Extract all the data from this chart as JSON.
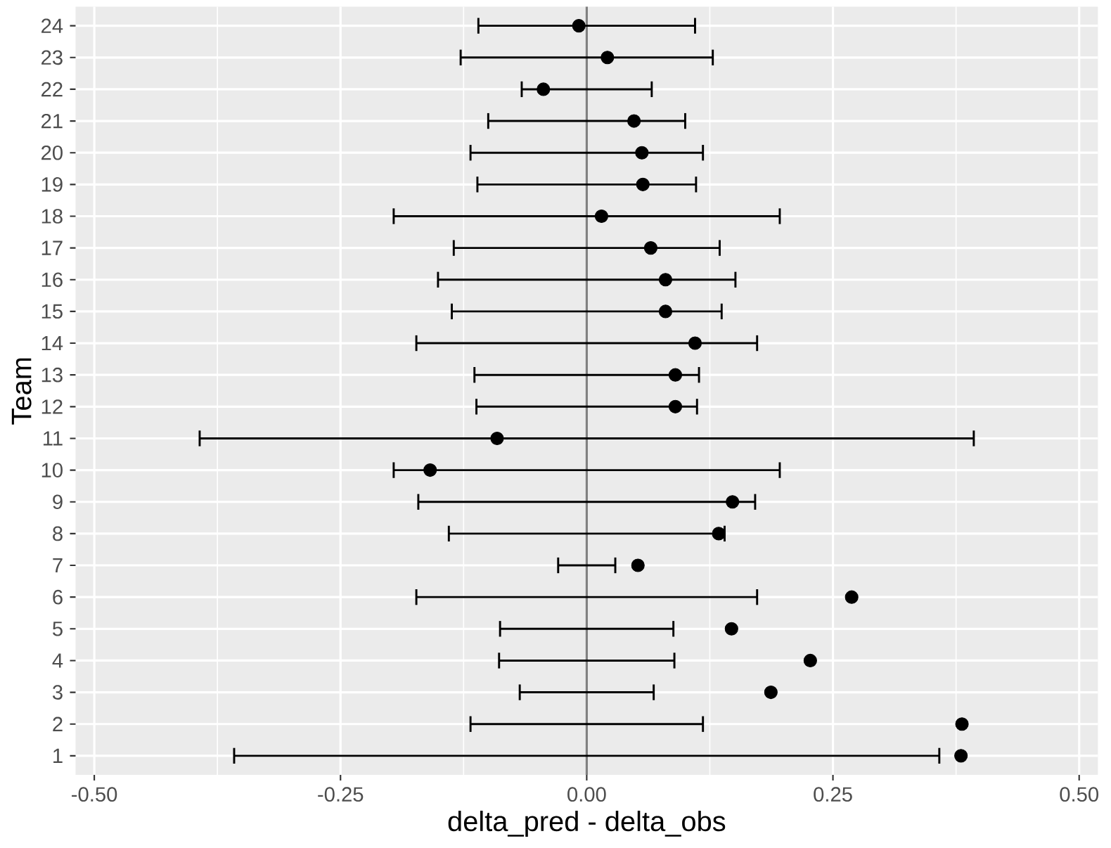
{
  "chart_data": {
    "type": "scatter",
    "orientation": "horizontal",
    "xlabel": "delta_pred - delta_obs",
    "ylabel": "Team",
    "categories": [
      "24",
      "23",
      "22",
      "21",
      "20",
      "19",
      "18",
      "17",
      "16",
      "15",
      "14",
      "13",
      "12",
      "11",
      "10",
      "9",
      "8",
      "7",
      "6",
      "5",
      "4",
      "3",
      "2",
      "1"
    ],
    "series": [
      {
        "color": "#000000",
        "values": [
          -0.008,
          0.021,
          -0.044,
          0.048,
          0.056,
          0.057,
          0.015,
          0.065,
          0.08,
          0.08,
          0.11,
          0.09,
          0.09,
          -0.091,
          -0.159,
          0.148,
          0.134,
          0.052,
          0.269,
          0.147,
          0.227,
          0.187,
          0.381,
          0.38
        ],
        "errors": [
          [
            -0.11,
            0.11
          ],
          [
            -0.128,
            0.128
          ],
          [
            -0.066,
            0.066
          ],
          [
            -0.1,
            0.1
          ],
          [
            -0.118,
            0.118
          ],
          [
            -0.111,
            0.111
          ],
          [
            -0.196,
            0.196
          ],
          [
            -0.135,
            0.135
          ],
          [
            -0.151,
            0.151
          ],
          [
            -0.137,
            0.137
          ],
          [
            -0.173,
            0.173
          ],
          [
            -0.114,
            0.114
          ],
          [
            -0.112,
            0.112
          ],
          [
            -0.393,
            0.393
          ],
          [
            -0.196,
            0.196
          ],
          [
            -0.171,
            0.171
          ],
          [
            -0.14,
            0.14
          ],
          [
            -0.029,
            0.029
          ],
          [
            -0.173,
            0.173
          ],
          [
            -0.088,
            0.088
          ],
          [
            -0.089,
            0.089
          ],
          [
            -0.068,
            0.068
          ],
          [
            -0.118,
            0.118
          ],
          [
            -0.358,
            0.358
          ]
        ]
      }
    ],
    "xlim": [
      -0.519,
      0.519
    ],
    "xticks": [
      {
        "value": -0.5,
        "label": "-0.50"
      },
      {
        "value": -0.25,
        "label": "-0.25"
      },
      {
        "value": 0,
        "label": "0.00"
      },
      {
        "value": 0.25,
        "label": "0.25"
      },
      {
        "value": 0.5,
        "label": "0.50"
      }
    ],
    "ref_lines": [
      {
        "axis": "x",
        "value": 0,
        "color": "#808080"
      }
    ],
    "grid": true,
    "marker": "circle"
  }
}
